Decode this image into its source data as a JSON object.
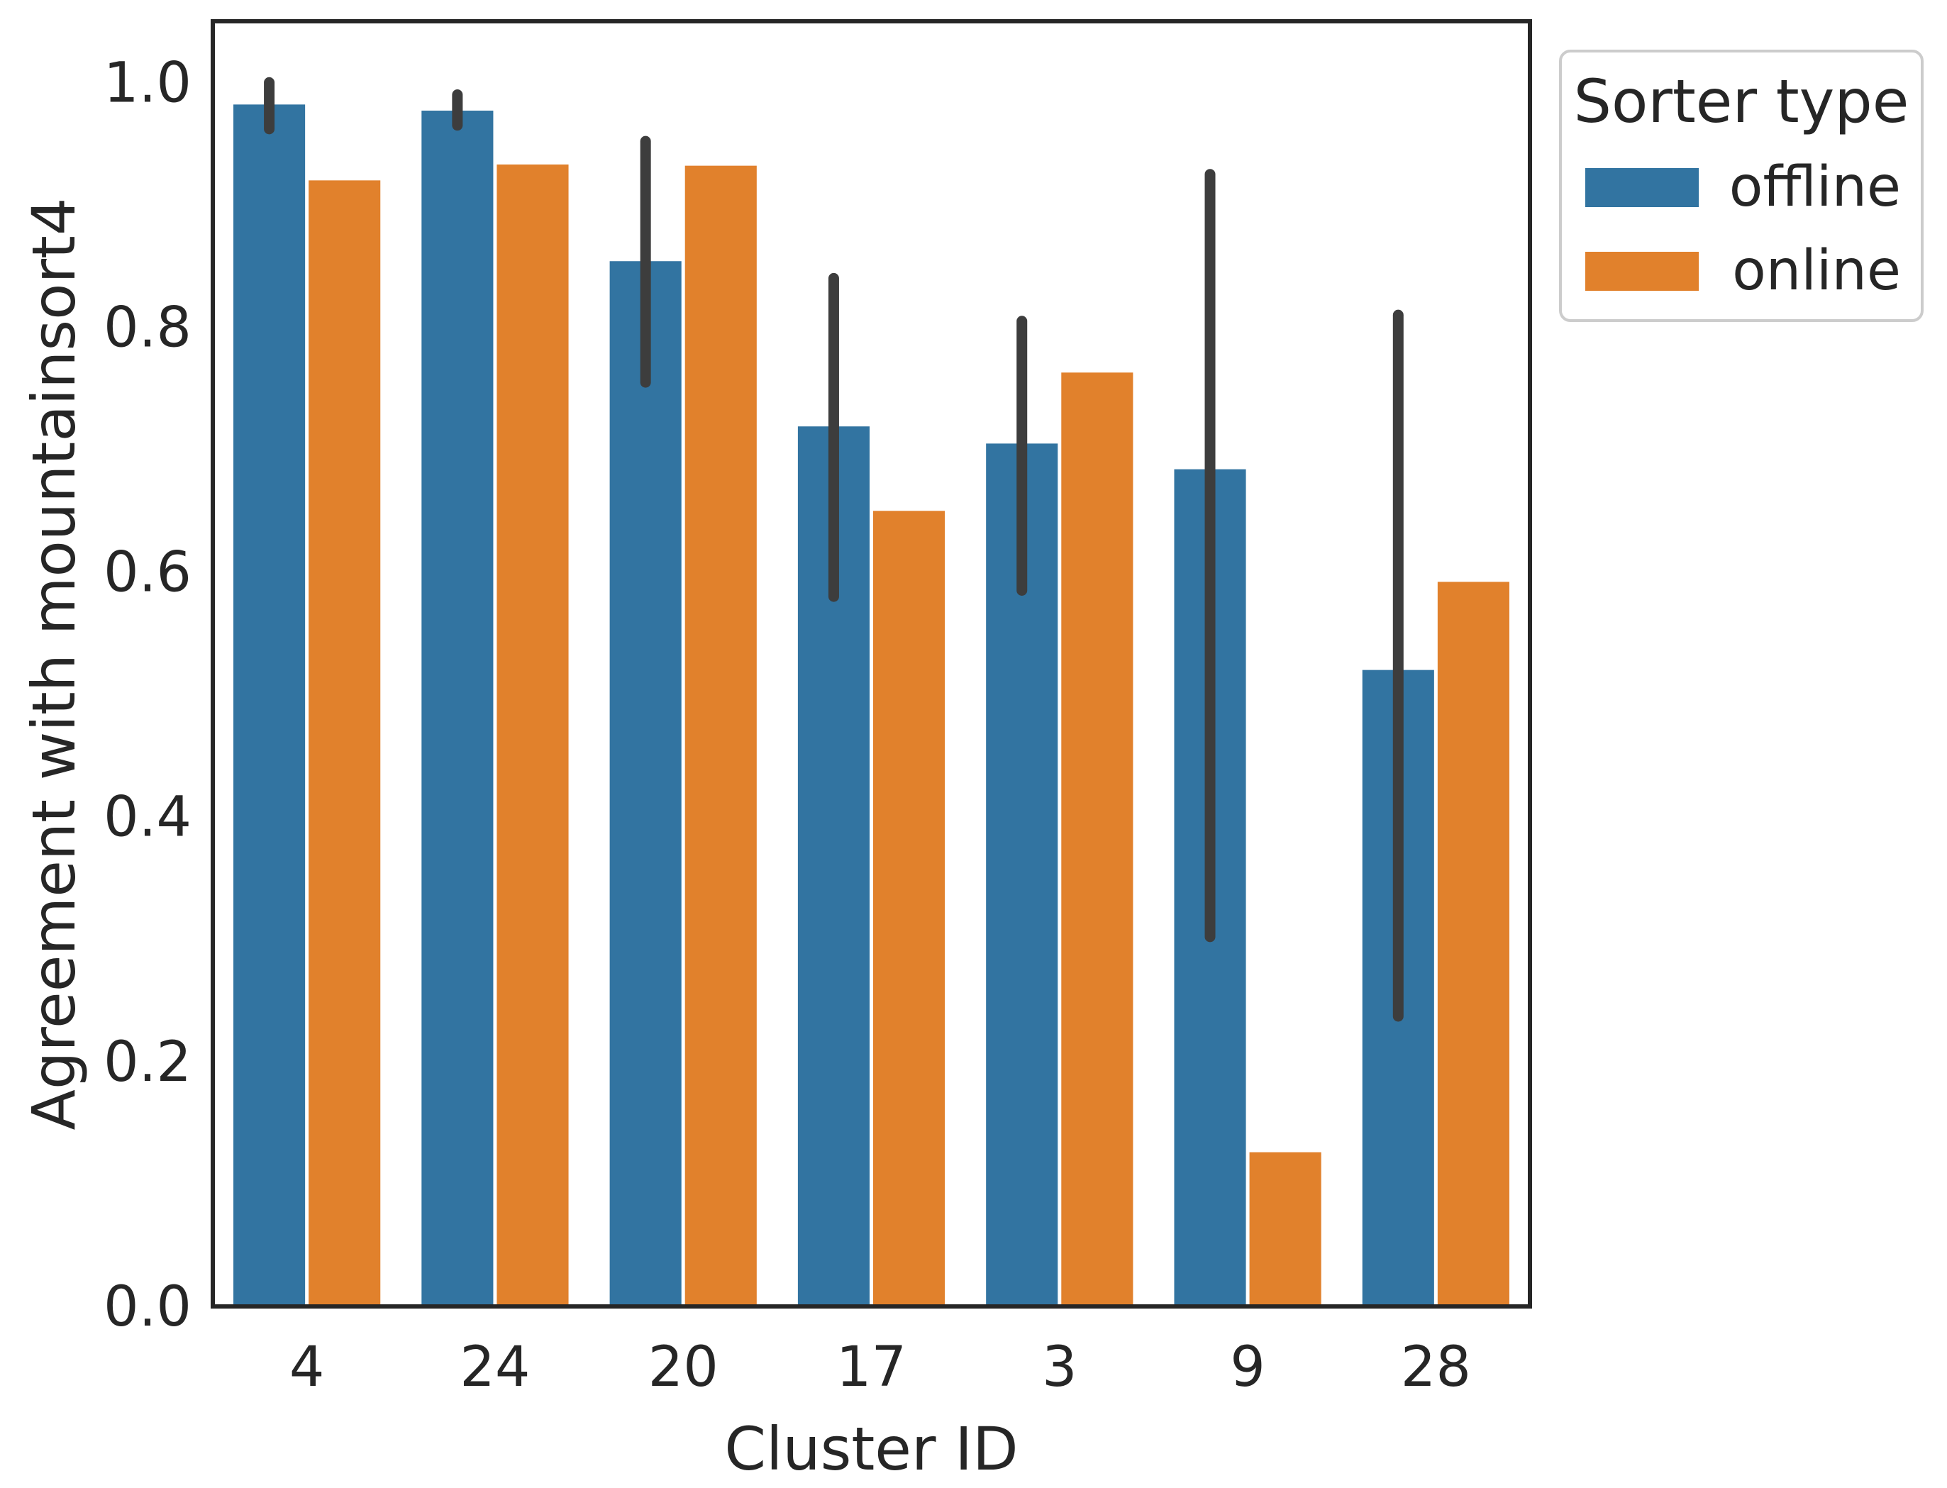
{
  "chart_data": {
    "type": "bar",
    "xlabel": "Cluster ID",
    "ylabel": "Agreement with mountainsort4",
    "categories": [
      "4",
      "24",
      "20",
      "17",
      "3",
      "9",
      "28"
    ],
    "ylim": [
      0.0,
      1.05
    ],
    "yticks": [
      0.0,
      0.2,
      0.4,
      0.6,
      0.8,
      1.0
    ],
    "ytick_labels": [
      "0.0",
      "0.2",
      "0.4",
      "0.6",
      "0.8",
      "1.0"
    ],
    "grid": false,
    "legend": {
      "title": "Sorter type",
      "placement": "outside upper right"
    },
    "series": [
      {
        "name": "offline",
        "color": "#3274a1",
        "values": [
          0.982,
          0.977,
          0.854,
          0.719,
          0.705,
          0.684,
          0.52
        ],
        "error_low": [
          0.962,
          0.965,
          0.755,
          0.58,
          0.585,
          0.302,
          0.237
        ],
        "error_high": [
          1.0,
          0.99,
          0.952,
          0.84,
          0.805,
          0.925,
          0.81
        ]
      },
      {
        "name": "online",
        "color": "#e1812c",
        "values": [
          0.92,
          0.933,
          0.932,
          0.65,
          0.763,
          0.126,
          0.592
        ]
      }
    ],
    "error_bar_color": "#3d3d3d"
  }
}
